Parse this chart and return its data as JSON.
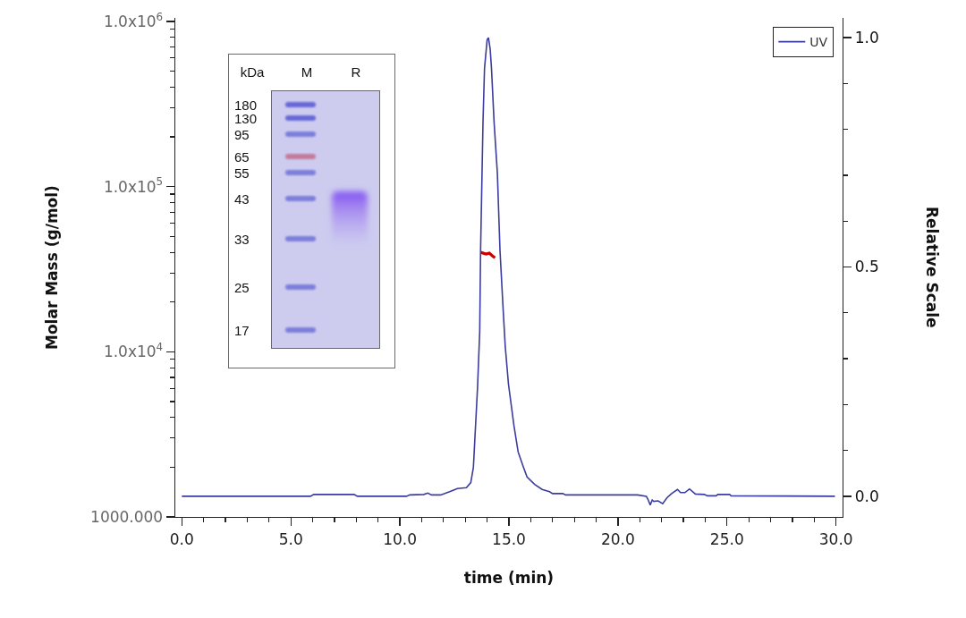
{
  "chart_data": {
    "type": "line",
    "xlabel": "time (min)",
    "ylabel": "Molar Mass (g/mol)",
    "y2label": "Relative Scale",
    "xlim": [
      -0.3,
      30.3
    ],
    "xticks": [
      {
        "value": 0,
        "label": "0.0"
      },
      {
        "value": 1,
        "label": null
      },
      {
        "value": 2,
        "label": null
      },
      {
        "value": 3,
        "label": null
      },
      {
        "value": 4,
        "label": null
      },
      {
        "value": 5,
        "label": "5.0"
      },
      {
        "value": 6,
        "label": null
      },
      {
        "value": 7,
        "label": null
      },
      {
        "value": 8,
        "label": null
      },
      {
        "value": 9,
        "label": null
      },
      {
        "value": 10,
        "label": "10.0"
      },
      {
        "value": 11,
        "label": null
      },
      {
        "value": 12,
        "label": null
      },
      {
        "value": 13,
        "label": null
      },
      {
        "value": 14,
        "label": null
      },
      {
        "value": 15,
        "label": "15.0"
      },
      {
        "value": 16,
        "label": null
      },
      {
        "value": 17,
        "label": null
      },
      {
        "value": 18,
        "label": null
      },
      {
        "value": 19,
        "label": null
      },
      {
        "value": 20,
        "label": "20.0"
      },
      {
        "value": 21,
        "label": null
      },
      {
        "value": 22,
        "label": null
      },
      {
        "value": 23,
        "label": null
      },
      {
        "value": 24,
        "label": null
      },
      {
        "value": 25,
        "label": "25.0"
      },
      {
        "value": 26,
        "label": null
      },
      {
        "value": 27,
        "label": null
      },
      {
        "value": 28,
        "label": null
      },
      {
        "value": 29,
        "label": null
      },
      {
        "value": 30,
        "label": "30.0"
      }
    ],
    "ylim": [
      1000,
      1050000
    ],
    "yticks": [
      {
        "value": 1000,
        "label": "1000.000"
      },
      {
        "value": 2000,
        "label": null
      },
      {
        "value": 3000,
        "label": null
      },
      {
        "value": 4000,
        "label": null
      },
      {
        "value": 5000,
        "label": null
      },
      {
        "value": 6000,
        "label": null
      },
      {
        "value": 7000,
        "label": null
      },
      {
        "value": 8000,
        "label": null
      },
      {
        "value": 9000,
        "label": null
      },
      {
        "value": 10000,
        "label": "1.0x10$^{4}$"
      },
      {
        "value": 20000,
        "label": null
      },
      {
        "value": 30000,
        "label": null
      },
      {
        "value": 40000,
        "label": null
      },
      {
        "value": 50000,
        "label": null
      },
      {
        "value": 60000,
        "label": null
      },
      {
        "value": 70000,
        "label": null
      },
      {
        "value": 80000,
        "label": null
      },
      {
        "value": 90000,
        "label": null
      },
      {
        "value": 100000,
        "label": "1.0x10$^{5}$"
      },
      {
        "value": 200000,
        "label": null
      },
      {
        "value": 300000,
        "label": null
      },
      {
        "value": 400000,
        "label": null
      },
      {
        "value": 500000,
        "label": null
      },
      {
        "value": 600000,
        "label": null
      },
      {
        "value": 700000,
        "label": null
      },
      {
        "value": 800000,
        "label": null
      },
      {
        "value": 900000,
        "label": null
      },
      {
        "value": 1000000,
        "label": "1.0x10$^{6}$"
      }
    ],
    "y2lim": [
      -0.045,
      1.043
    ],
    "y2ticks": [
      {
        "value": 0,
        "label": "0.0"
      },
      {
        "value": 0.1,
        "label": null
      },
      {
        "value": 0.2,
        "label": null
      },
      {
        "value": 0.3,
        "label": null
      },
      {
        "value": 0.4,
        "label": null
      },
      0.5,
      {
        "value": 0.6,
        "label": null
      },
      {
        "value": 0.7,
        "label": null
      },
      {
        "value": 0.8,
        "label": null
      },
      {
        "value": 0.9,
        "label": null
      },
      {
        "value": 1,
        "label": "1.0"
      }
    ],
    "log": "y",
    "grid": false,
    "legend": "top right",
    "series": [
      {
        "name": "UV",
        "color": "#3c3c9e",
        "axis": "y2",
        "x": [
          0,
          5.9,
          6.05,
          7.9,
          8.05,
          10.3,
          10.45,
          11.1,
          11.28,
          11.45,
          11.87,
          12.28,
          12.64,
          13.05,
          13.25,
          13.37,
          13.56,
          13.66,
          13.7,
          13.81,
          13.88,
          14.0,
          14.06,
          14.14,
          14.2,
          14.32,
          14.47,
          14.59,
          14.73,
          14.83,
          14.98,
          15.23,
          15.42,
          15.63,
          15.83,
          16.18,
          16.52,
          16.86,
          17.0,
          17.47,
          17.6,
          20.9,
          21.3,
          21.37,
          21.48,
          21.57,
          21.64,
          21.84,
          22.05,
          22.25,
          22.46,
          22.73,
          22.87,
          23.07,
          23.28,
          23.55,
          23.96,
          24.1,
          24.5,
          24.58,
          25.12,
          25.19,
          29.95
        ],
        "values": [
          0,
          0,
          0.004,
          0.004,
          0,
          0,
          0.003,
          0.004,
          0.007,
          0.003,
          0.003,
          0.01,
          0.017,
          0.019,
          0.03,
          0.063,
          0.237,
          0.359,
          0.536,
          0.815,
          0.933,
          0.995,
          1.0,
          0.975,
          0.933,
          0.815,
          0.704,
          0.536,
          0.411,
          0.327,
          0.244,
          0.154,
          0.097,
          0.068,
          0.042,
          0.026,
          0.015,
          0.01,
          0.006,
          0.006,
          0.003,
          0.003,
          0,
          -0.006,
          -0.019,
          -0.008,
          -0.011,
          -0.01,
          -0.016,
          -0.003,
          0.006,
          0.015,
          0.008,
          0.008,
          0.016,
          0.005,
          0.004,
          0.001,
          0.001,
          0.004,
          0.004,
          0.001,
          0
        ]
      },
      {
        "color": "#cc0000",
        "x": [
          13.7,
          13.95,
          14.1,
          14.25,
          14.36
        ],
        "values": [
          40000,
          39000,
          39500,
          38000,
          37000
        ]
      }
    ],
    "annotations": [
      "kDa",
      "M",
      "R",
      "180",
      "130",
      "95",
      "65",
      "55",
      "43",
      "33",
      "25",
      "17"
    ]
  }
}
